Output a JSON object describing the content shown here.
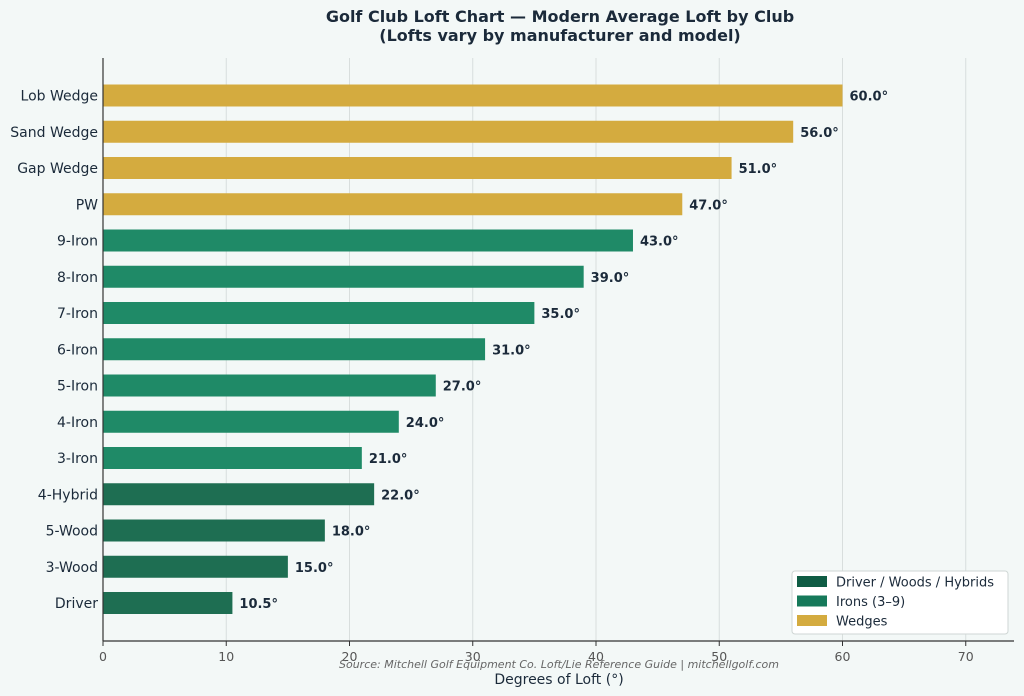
{
  "chart_data": {
    "type": "bar",
    "orientation": "horizontal",
    "title": "Golf Club Loft Chart — Modern Average Loft by Club",
    "subtitle": "(Lofts vary by manufacturer and model)",
    "xlabel": "Degrees of Loft  (°)",
    "ylabel": "",
    "xlim": [
      0,
      74
    ],
    "xticks": [
      0,
      10,
      20,
      30,
      40,
      50,
      60,
      70
    ],
    "grid": "vertical",
    "legend_position": "bottom-right",
    "categories": [
      "Lob Wedge",
      "Sand Wedge",
      "Gap Wedge",
      "PW",
      "9-Iron",
      "8-Iron",
      "7-Iron",
      "6-Iron",
      "5-Iron",
      "4-Iron",
      "3-Iron",
      "4-Hybrid",
      "5-Wood",
      "3-Wood",
      "Driver"
    ],
    "values": [
      60.0,
      56.0,
      51.0,
      47.0,
      43.0,
      39.0,
      35.0,
      31.0,
      27.0,
      24.0,
      21.0,
      22.0,
      18.0,
      15.0,
      10.5
    ],
    "value_labels": [
      "60.0°",
      "56.0°",
      "51.0°",
      "47.0°",
      "43.0°",
      "39.0°",
      "35.0°",
      "31.0°",
      "27.0°",
      "24.0°",
      "21.0°",
      "22.0°",
      "18.0°",
      "15.0°",
      "10.5°"
    ],
    "groups": [
      "wedges",
      "wedges",
      "wedges",
      "wedges",
      "irons",
      "irons",
      "irons",
      "irons",
      "irons",
      "irons",
      "irons",
      "woods",
      "woods",
      "woods",
      "woods"
    ],
    "legend": [
      {
        "key": "woods",
        "label": "Driver / Woods / Hybrids",
        "color": "#1e6e52",
        "swatch": "#0f5c44"
      },
      {
        "key": "irons",
        "label": "Irons (3–9)",
        "color": "#1f8a67",
        "swatch": "#16795a"
      },
      {
        "key": "wedges",
        "label": "Wedges",
        "color": "#d4ab3f",
        "swatch": "#d4ab3f"
      }
    ],
    "source": "Source: Mitchell Golf Equipment Co. Loft/Lie Reference Guide | mitchellgolf.com"
  }
}
